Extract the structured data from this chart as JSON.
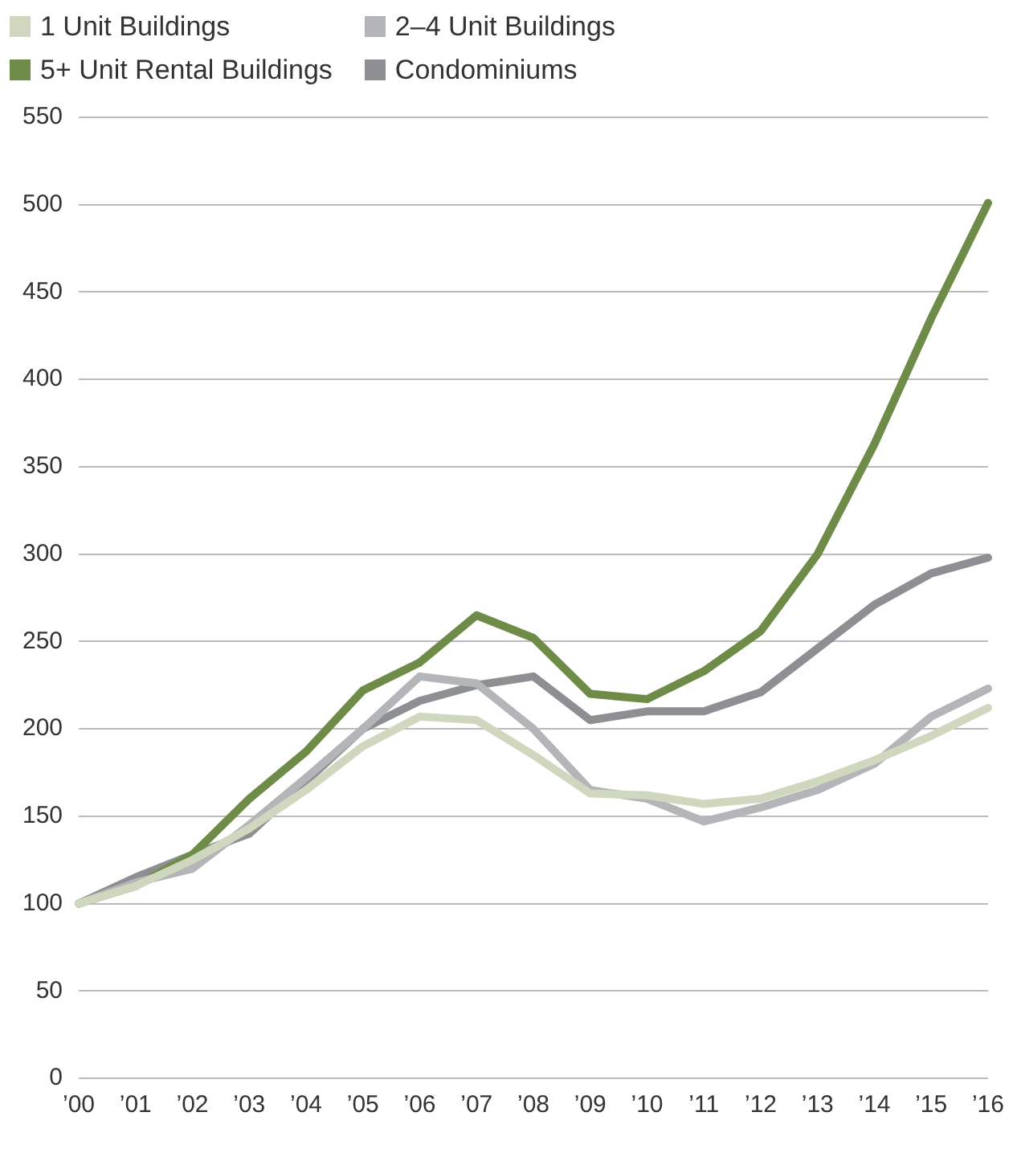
{
  "chart_data": {
    "type": "line",
    "categories": [
      "’00",
      "’01",
      "’02",
      "’03",
      "’04",
      "’05",
      "’06",
      "’07",
      "’08",
      "’09",
      "’10",
      "’11",
      "’12",
      "’13",
      "’14",
      "’15",
      "’16"
    ],
    "series": [
      {
        "name": "1 Unit Buildings",
        "color": "#cfd8bf",
        "values": [
          100,
          110,
          125,
          143,
          165,
          190,
          207,
          205,
          185,
          163,
          162,
          157,
          160,
          170,
          182,
          196,
          212
        ]
      },
      {
        "name": "2–4 Unit Buildings",
        "color": "#b4b5b8",
        "values": [
          100,
          112,
          120,
          145,
          172,
          200,
          230,
          226,
          200,
          165,
          160,
          147,
          155,
          165,
          180,
          207,
          223
        ]
      },
      {
        "name": "5+ Unit Rental Buildings",
        "color": "#6e8b47",
        "values": [
          100,
          110,
          128,
          160,
          187,
          222,
          238,
          265,
          252,
          220,
          217,
          233,
          256,
          300,
          363,
          435,
          501
        ]
      },
      {
        "name": "Condominiums",
        "color": "#8e8f93",
        "values": [
          100,
          115,
          128,
          140,
          170,
          200,
          216,
          225,
          230,
          205,
          210,
          210,
          221,
          246,
          271,
          289,
          298
        ]
      }
    ],
    "ylim": [
      0,
      550
    ],
    "yticks": [
      0,
      50,
      100,
      150,
      200,
      250,
      300,
      350,
      400,
      450,
      500,
      550
    ],
    "grid": "y",
    "legend": "top left",
    "marker": "none",
    "line_style": "solid"
  }
}
